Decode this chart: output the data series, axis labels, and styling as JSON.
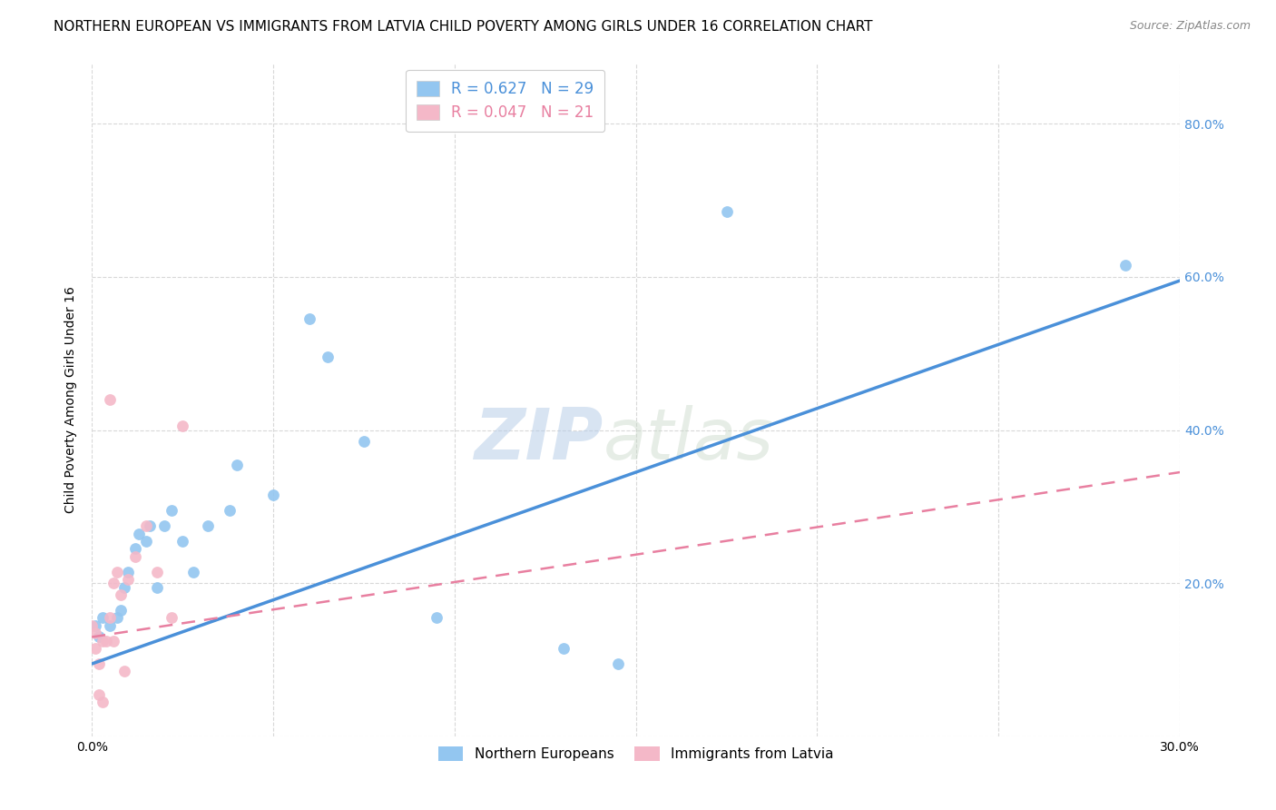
{
  "title": "NORTHERN EUROPEAN VS IMMIGRANTS FROM LATVIA CHILD POVERTY AMONG GIRLS UNDER 16 CORRELATION CHART",
  "source": "Source: ZipAtlas.com",
  "ylabel": "Child Poverty Among Girls Under 16",
  "xlim": [
    0.0,
    0.3
  ],
  "ylim": [
    0.0,
    0.88
  ],
  "xticks": [
    0.0,
    0.05,
    0.1,
    0.15,
    0.2,
    0.25,
    0.3
  ],
  "xticklabels": [
    "0.0%",
    "",
    "",
    "",
    "",
    "",
    "30.0%"
  ],
  "yticks": [
    0.0,
    0.2,
    0.4,
    0.6,
    0.8
  ],
  "yticklabels_right": [
    "",
    "20.0%",
    "40.0%",
    "60.0%",
    "80.0%"
  ],
  "blue_color": "#93c6f0",
  "pink_color": "#f4b8c8",
  "blue_line_color": "#4a90d9",
  "pink_line_color": "#e87fa0",
  "legend_R1": "0.627",
  "legend_N1": "29",
  "legend_R2": "0.047",
  "legend_N2": "21",
  "legend_label1": "Northern Europeans",
  "legend_label2": "Immigrants from Latvia",
  "watermark": "ZIPatlas",
  "blue_scatter_x": [
    0.001,
    0.002,
    0.003,
    0.005,
    0.007,
    0.008,
    0.009,
    0.01,
    0.012,
    0.013,
    0.015,
    0.016,
    0.018,
    0.02,
    0.022,
    0.025,
    0.028,
    0.032,
    0.038,
    0.04,
    0.05,
    0.06,
    0.065,
    0.075,
    0.095,
    0.13,
    0.145,
    0.175,
    0.285
  ],
  "blue_scatter_y": [
    0.145,
    0.13,
    0.155,
    0.145,
    0.155,
    0.165,
    0.195,
    0.215,
    0.245,
    0.265,
    0.255,
    0.275,
    0.195,
    0.275,
    0.295,
    0.255,
    0.215,
    0.275,
    0.295,
    0.355,
    0.315,
    0.545,
    0.495,
    0.385,
    0.155,
    0.115,
    0.095,
    0.685,
    0.615
  ],
  "pink_scatter_x": [
    0.0,
    0.001,
    0.001,
    0.002,
    0.002,
    0.003,
    0.003,
    0.004,
    0.005,
    0.006,
    0.006,
    0.007,
    0.008,
    0.009,
    0.01,
    0.012,
    0.015,
    0.018,
    0.022,
    0.025,
    0.005
  ],
  "pink_scatter_y": [
    0.145,
    0.135,
    0.115,
    0.095,
    0.055,
    0.045,
    0.125,
    0.125,
    0.155,
    0.125,
    0.2,
    0.215,
    0.185,
    0.085,
    0.205,
    0.235,
    0.275,
    0.215,
    0.155,
    0.405,
    0.44
  ],
  "blue_line_x": [
    0.0,
    0.3
  ],
  "blue_line_y": [
    0.095,
    0.595
  ],
  "pink_line_x": [
    0.0,
    0.3
  ],
  "pink_line_y": [
    0.13,
    0.345
  ],
  "title_fontsize": 11,
  "axis_label_fontsize": 10,
  "tick_fontsize": 10,
  "source_fontsize": 9,
  "scatter_size": 85,
  "background_color": "#ffffff",
  "grid_color": "#d8d8d8"
}
